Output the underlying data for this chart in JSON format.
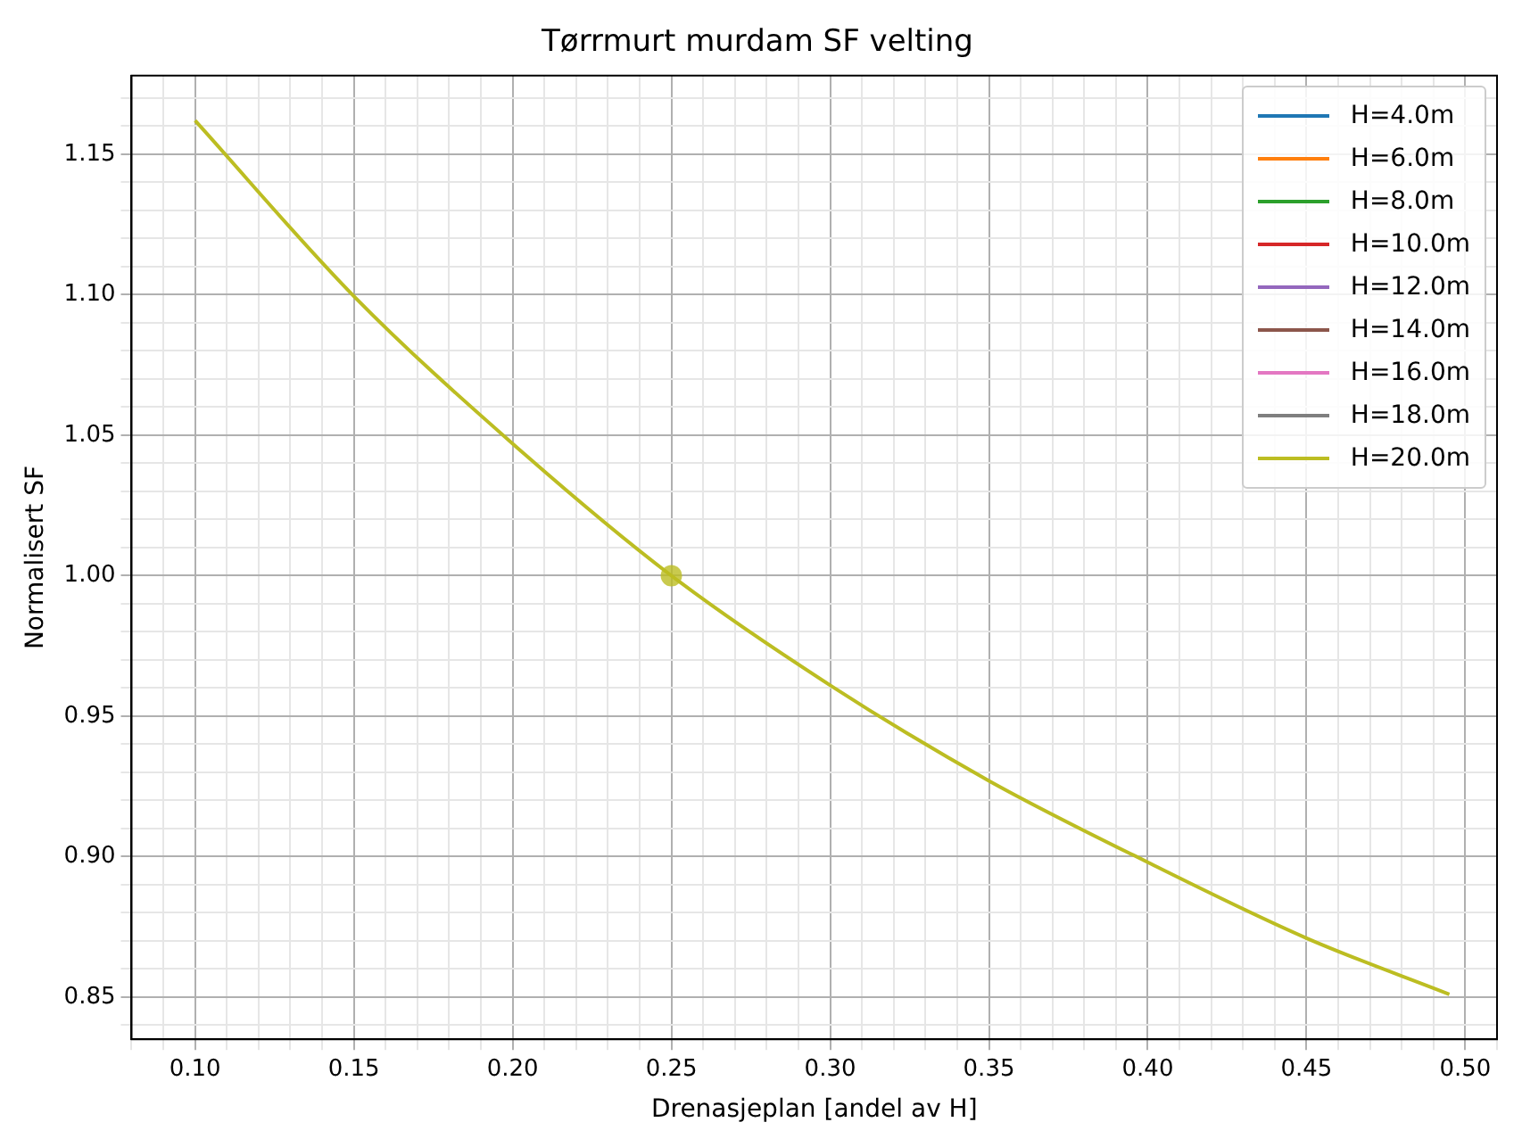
{
  "chart_data": {
    "type": "line",
    "title": "Tørrmurt murdam SF velting",
    "xlabel": "Drenasjeplan [andel av H]",
    "ylabel": "Normalisert SF",
    "x": [
      0.1,
      0.15,
      0.2,
      0.25,
      0.3,
      0.35,
      0.4,
      0.45,
      0.495
    ],
    "series": [
      {
        "name": "H=4.0m",
        "color": "#1f77b4",
        "values": [
          null,
          null,
          null,
          null,
          null,
          null,
          null,
          null,
          null
        ]
      },
      {
        "name": "H=6.0m",
        "color": "#ff7f0e",
        "values": [
          null,
          null,
          null,
          null,
          null,
          null,
          null,
          null,
          null
        ]
      },
      {
        "name": "H=8.0m",
        "color": "#2ca02c",
        "values": [
          null,
          null,
          null,
          null,
          null,
          null,
          null,
          null,
          null
        ]
      },
      {
        "name": "H=10.0m",
        "color": "#d62728",
        "values": [
          null,
          null,
          null,
          null,
          null,
          null,
          null,
          null,
          null
        ]
      },
      {
        "name": "H=12.0m",
        "color": "#9467bd",
        "values": [
          null,
          null,
          null,
          null,
          null,
          null,
          null,
          null,
          null
        ]
      },
      {
        "name": "H=14.0m",
        "color": "#8c564b",
        "values": [
          null,
          null,
          null,
          null,
          null,
          null,
          null,
          null,
          null
        ]
      },
      {
        "name": "H=16.0m",
        "color": "#e377c2",
        "values": [
          null,
          null,
          null,
          null,
          null,
          null,
          null,
          null,
          null
        ]
      },
      {
        "name": "H=18.0m",
        "color": "#7f7f7f",
        "values": [
          null,
          null,
          null,
          null,
          null,
          null,
          null,
          null,
          null
        ]
      },
      {
        "name": "H=20.0m",
        "color": "#bcbd22",
        "values": [
          1.162,
          1.0995,
          1.047,
          1.0,
          0.961,
          0.927,
          0.898,
          0.871,
          0.851
        ]
      },
      {
        "type": "scatter",
        "x": [
          0.25
        ],
        "values": [
          1.0
        ],
        "color": "#bcbd22",
        "marker": "circle"
      }
    ],
    "xlim": [
      0.08,
      0.51
    ],
    "xticks": [
      {
        "value": 0.08,
        "label": null
      },
      {
        "value": 0.09,
        "label": null
      },
      {
        "value": 0.1,
        "label": "0.10"
      },
      {
        "value": 0.11,
        "label": null
      },
      {
        "value": 0.12,
        "label": null
      },
      {
        "value": 0.13,
        "label": null
      },
      {
        "value": 0.14,
        "label": null
      },
      0.15,
      {
        "value": 0.16,
        "label": null
      },
      {
        "value": 0.17,
        "label": null
      },
      {
        "value": 0.18,
        "label": null
      },
      {
        "value": 0.19,
        "label": null
      },
      {
        "value": 0.2,
        "label": "0.20"
      },
      {
        "value": 0.21,
        "label": null
      },
      {
        "value": 0.22,
        "label": null
      },
      {
        "value": 0.23,
        "label": null
      },
      {
        "value": 0.24,
        "label": null
      },
      0.25,
      {
        "value": 0.26,
        "label": null
      },
      {
        "value": 0.27,
        "label": null
      },
      {
        "value": 0.28,
        "label": null
      },
      {
        "value": 0.29,
        "label": null
      },
      {
        "value": 0.3,
        "label": "0.30"
      },
      {
        "value": 0.31,
        "label": null
      },
      {
        "value": 0.32,
        "label": null
      },
      {
        "value": 0.33,
        "label": null
      },
      {
        "value": 0.34,
        "label": null
      },
      0.35,
      {
        "value": 0.36,
        "label": null
      },
      {
        "value": 0.37,
        "label": null
      },
      {
        "value": 0.38,
        "label": null
      },
      {
        "value": 0.39,
        "label": null
      },
      {
        "value": 0.4,
        "label": "0.40"
      },
      {
        "value": 0.41,
        "label": null
      },
      {
        "value": 0.42,
        "label": null
      },
      {
        "value": 0.43,
        "label": null
      },
      {
        "value": 0.44,
        "label": null
      },
      0.45,
      {
        "value": 0.46,
        "label": null
      },
      {
        "value": 0.47,
        "label": null
      },
      {
        "value": 0.48,
        "label": null
      },
      {
        "value": 0.49,
        "label": null
      },
      {
        "value": 0.5,
        "label": "0.50"
      },
      {
        "value": 0.51,
        "label": null
      }
    ],
    "ylim": [
      0.835,
      1.178
    ],
    "yticks": [
      {
        "value": 0.84,
        "label": null
      },
      0.85,
      {
        "value": 0.86,
        "label": null
      },
      {
        "value": 0.87,
        "label": null
      },
      {
        "value": 0.88,
        "label": null
      },
      {
        "value": 0.89,
        "label": null
      },
      {
        "value": 0.9,
        "label": "0.90"
      },
      {
        "value": 0.91,
        "label": null
      },
      {
        "value": 0.92,
        "label": null
      },
      {
        "value": 0.93,
        "label": null
      },
      {
        "value": 0.94,
        "label": null
      },
      0.95,
      {
        "value": 0.96,
        "label": null
      },
      {
        "value": 0.97,
        "label": null
      },
      {
        "value": 0.98,
        "label": null
      },
      {
        "value": 0.99,
        "label": null
      },
      {
        "value": 1.0,
        "label": "1.00"
      },
      {
        "value": 1.01,
        "label": null
      },
      {
        "value": 1.02,
        "label": null
      },
      {
        "value": 1.03,
        "label": null
      },
      {
        "value": 1.04,
        "label": null
      },
      1.05,
      {
        "value": 1.06,
        "label": null
      },
      {
        "value": 1.07,
        "label": null
      },
      {
        "value": 1.08,
        "label": null
      },
      {
        "value": 1.09,
        "label": null
      },
      {
        "value": 1.1,
        "label": "1.10"
      },
      {
        "value": 1.11,
        "label": null
      },
      {
        "value": 1.12,
        "label": null
      },
      {
        "value": 1.13,
        "label": null
      },
      {
        "value": 1.14,
        "label": null
      },
      1.15,
      {
        "value": 1.16,
        "label": null
      },
      {
        "value": 1.17,
        "label": null
      }
    ],
    "grid": true,
    "legend": "top right",
    "marker": "none",
    "line_style": "solid"
  }
}
